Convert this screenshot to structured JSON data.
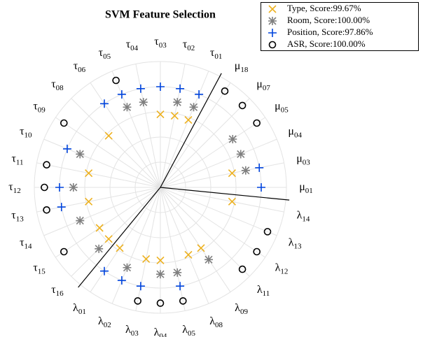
{
  "chart_data": {
    "type": "polar-scatter",
    "title": "SVM Feature Selection",
    "categories": [
      "μ01",
      "μ03",
      "μ04",
      "μ05",
      "μ07",
      "μ18",
      "τ01",
      "τ02",
      "τ03",
      "τ04",
      "τ05",
      "τ06",
      "τ08",
      "τ09",
      "τ10",
      "τ11",
      "τ12",
      "τ13",
      "τ14",
      "τ15",
      "τ16",
      "λ01",
      "λ02",
      "λ03",
      "λ04",
      "λ05",
      "λ08",
      "λ09",
      "λ11",
      "λ12",
      "λ13",
      "λ14"
    ],
    "rlim": [
      0,
      1
    ],
    "rticks": [
      0.2,
      0.4,
      0.6,
      0.8,
      1
    ],
    "grid": true,
    "legend": "top-right",
    "series": [
      {
        "name": "Type, Score:99.67%",
        "color": "#EDB120",
        "marker": "x",
        "values": [
          null,
          0.58,
          null,
          null,
          null,
          null,
          0.58,
          0.58,
          0.58,
          null,
          null,
          null,
          0.58,
          null,
          null,
          0.58,
          null,
          0.58,
          null,
          0.58,
          0.58,
          0.58,
          null,
          0.58,
          0.58,
          null,
          0.58,
          0.58,
          null,
          null,
          null,
          0.58
        ]
      },
      {
        "name": "Room, Score:100.00%",
        "color": "#7f7f7f",
        "marker": "asterisk",
        "values": [
          null,
          0.69,
          0.69,
          0.69,
          null,
          null,
          0.69,
          0.69,
          null,
          0.69,
          0.69,
          null,
          null,
          null,
          0.69,
          null,
          0.69,
          null,
          0.69,
          null,
          0.69,
          null,
          0.69,
          null,
          0.69,
          0.69,
          null,
          0.69,
          null,
          null,
          null,
          null
        ]
      },
      {
        "name": "Position, Score:97.86%",
        "color": "#0044dd",
        "marker": "plus",
        "values": [
          0.8,
          0.8,
          null,
          null,
          null,
          null,
          0.8,
          0.8,
          0.8,
          0.8,
          0.8,
          0.8,
          null,
          null,
          0.8,
          null,
          0.8,
          0.8,
          null,
          null,
          null,
          0.8,
          0.8,
          0.8,
          null,
          0.8,
          null,
          null,
          null,
          null,
          null,
          null
        ]
      },
      {
        "name": "ASR, Score:100.00%",
        "color": "#000000",
        "marker": "circle",
        "values": [
          null,
          null,
          null,
          0.92,
          0.92,
          0.92,
          null,
          null,
          null,
          null,
          0.92,
          null,
          null,
          0.92,
          null,
          0.92,
          0.92,
          0.92,
          null,
          0.92,
          null,
          null,
          null,
          0.92,
          0.92,
          0.92,
          null,
          null,
          0.92,
          0.92,
          0.92,
          null
        ]
      }
    ]
  }
}
